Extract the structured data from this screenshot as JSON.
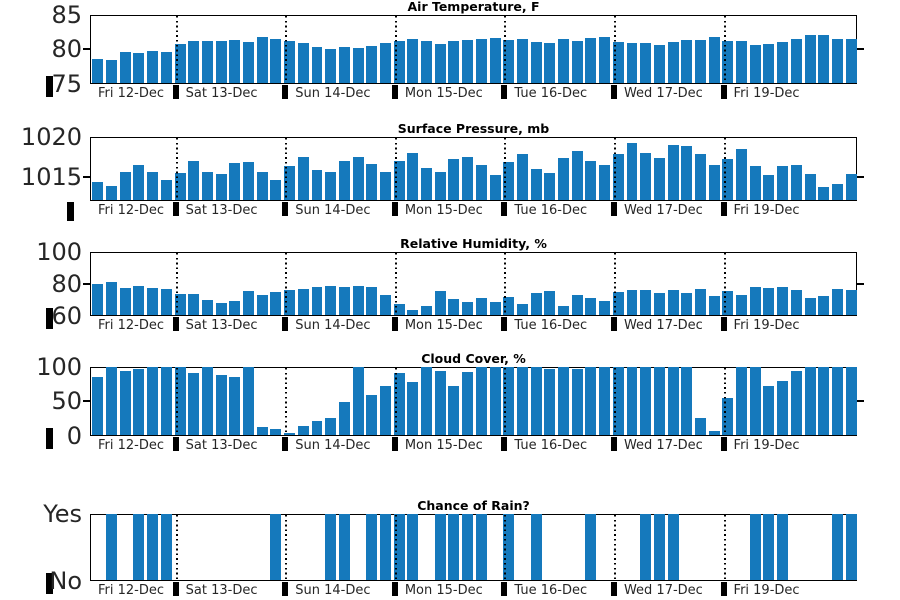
{
  "figure": {
    "bar_color": "#1579bc",
    "axis_color": "#000000",
    "tick_label_color": "#262626",
    "background_color": "#ffffff"
  },
  "days": {
    "labels": [
      "Fri 12-Dec",
      "Sat 13-Dec",
      "Sun 14-Dec",
      "Mon 15-Dec",
      "Tue 16-Dec",
      "Wed 17-Dec",
      "Fri 19-Dec"
    ],
    "start_bar_indices": [
      0,
      6,
      14,
      22,
      30,
      38,
      46
    ],
    "bars_per_day": [
      6,
      8,
      8,
      8,
      8,
      8,
      10
    ],
    "total_bars": 56
  },
  "chart_data": [
    {
      "type": "bar",
      "title": "Air Temperature, F",
      "ylim": [
        75,
        85
      ],
      "yticks": [
        {
          "value": 75,
          "label": "75"
        },
        {
          "value": 80,
          "label": "80"
        },
        {
          "value": 85,
          "label": "85"
        }
      ],
      "grid": "dotted vertical lines at day boundaries",
      "legend": "none",
      "values": [
        78.5,
        78.4,
        79.5,
        79.4,
        79.7,
        79.5,
        80.7,
        81.1,
        81.1,
        81.1,
        81.3,
        81.0,
        81.7,
        81.5,
        81.1,
        80.9,
        80.3,
        79.9,
        80.3,
        80.1,
        80.4,
        80.9,
        81.2,
        81.4,
        81.2,
        80.7,
        81.1,
        81.3,
        81.4,
        81.6,
        81.3,
        81.5,
        81.0,
        80.9,
        81.5,
        81.2,
        81.6,
        81.8,
        81.0,
        80.8,
        80.8,
        80.6,
        81.0,
        81.3,
        81.3,
        81.7,
        81.2,
        81.1,
        80.5,
        80.7,
        81.0,
        81.4,
        82.1,
        82.0,
        81.5,
        81.4
      ]
    },
    {
      "type": "bar",
      "title": "Surface Pressure, mb",
      "ylim": [
        1012,
        1020
      ],
      "yticks": [
        {
          "value": 1015,
          "label": "1015"
        },
        {
          "value": 1020,
          "label": "1020"
        }
      ],
      "grid": "dotted vertical lines at day boundaries",
      "legend": "none",
      "values": [
        1014.3,
        1013.8,
        1015.5,
        1016.4,
        1015.5,
        1014.5,
        1015.4,
        1017.0,
        1015.6,
        1015.3,
        1016.7,
        1016.8,
        1015.6,
        1014.5,
        1016.3,
        1017.4,
        1015.8,
        1015.5,
        1017.0,
        1017.5,
        1016.6,
        1015.5,
        1017.0,
        1018.0,
        1016.1,
        1015.6,
        1017.2,
        1017.5,
        1016.4,
        1015.2,
        1016.8,
        1017.8,
        1015.9,
        1015.4,
        1017.3,
        1018.2,
        1017.0,
        1016.4,
        1017.8,
        1019.2,
        1018.0,
        1017.3,
        1019.0,
        1018.9,
        1017.8,
        1016.5,
        1017.2,
        1018.5,
        1016.3,
        1015.2,
        1016.3,
        1016.5,
        1015.3,
        1013.7,
        1014.0,
        1015.3
      ]
    },
    {
      "type": "bar",
      "title": "Relative Humidity, %",
      "ylim": [
        60,
        100
      ],
      "yticks": [
        {
          "value": 60,
          "label": "60"
        },
        {
          "value": 80,
          "label": "80"
        },
        {
          "value": 100,
          "label": "100"
        }
      ],
      "grid": "dotted vertical lines at day boundaries",
      "legend": "none",
      "values": [
        79.5,
        81,
        77,
        78.5,
        77,
        76.5,
        73.5,
        73.5,
        69.5,
        67.5,
        69,
        75,
        72.5,
        74.5,
        76,
        76.5,
        77.5,
        78.5,
        77.5,
        78.5,
        77.5,
        72.5,
        67,
        63.5,
        66,
        75,
        70,
        68.5,
        70.5,
        68.5,
        71.5,
        67,
        74,
        75,
        66,
        72.5,
        71,
        69,
        74.5,
        76,
        76,
        74,
        76,
        74,
        76.5,
        72,
        75,
        73,
        77.5,
        77,
        78,
        76,
        70.5,
        72,
        76.5,
        76
      ]
    },
    {
      "type": "bar",
      "title": "Cloud Cover, %",
      "ylim": [
        0,
        100
      ],
      "yticks": [
        {
          "value": 0,
          "label": "0"
        },
        {
          "value": 50,
          "label": "50"
        },
        {
          "value": 100,
          "label": "100"
        }
      ],
      "grid": "dotted vertical lines at day boundaries",
      "legend": "none",
      "values": [
        84,
        100,
        93,
        96,
        100,
        100,
        100,
        90,
        100,
        87,
        85,
        100,
        11,
        9,
        3,
        13,
        20,
        25,
        48,
        100,
        59,
        71,
        90,
        77,
        100,
        94,
        72,
        92,
        100,
        100,
        100,
        100,
        100,
        96,
        100,
        96,
        100,
        100,
        100,
        100,
        100,
        100,
        100,
        100,
        25,
        6,
        54,
        100,
        100,
        71,
        79,
        93,
        100,
        100,
        100,
        100
      ]
    },
    {
      "type": "bar",
      "title": "Chance of Rain?",
      "ylim": [
        0,
        1
      ],
      "yticks": [
        {
          "value": 0,
          "label": "No"
        },
        {
          "value": 1,
          "label": "Yes"
        }
      ],
      "grid": "dotted vertical lines at day boundaries",
      "legend": "none",
      "values": [
        0,
        1,
        0,
        1,
        1,
        1,
        0,
        0,
        0,
        0,
        0,
        0,
        0,
        1,
        0,
        0,
        0,
        1,
        1,
        0,
        1,
        1,
        1,
        1,
        0,
        1,
        1,
        1,
        1,
        0,
        1,
        0,
        1,
        0,
        0,
        0,
        1,
        0,
        0,
        0,
        1,
        1,
        1,
        0,
        0,
        0,
        0,
        0,
        1,
        1,
        1,
        0,
        0,
        0,
        1,
        1
      ]
    }
  ]
}
